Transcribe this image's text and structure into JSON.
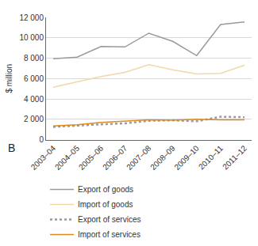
{
  "chart_data": {
    "type": "line",
    "annotations": [
      "B"
    ],
    "y_label": "$ million",
    "categories": [
      "2003–04",
      "2004–05",
      "2005–06",
      "2006–07",
      "2007–08",
      "2008–09",
      "2009–10",
      "2010–11",
      "2011–12"
    ],
    "series": [
      {
        "name": "Export of goods",
        "color": "#9a9a9a",
        "line_style": "solid",
        "values": [
          7950,
          8100,
          9150,
          9100,
          10450,
          9650,
          8250,
          11300,
          11550
        ]
      },
      {
        "name": "Import of goods",
        "color": "#f3d7a6",
        "line_style": "solid",
        "values": [
          5150,
          5700,
          6200,
          6600,
          7350,
          6850,
          6450,
          6500,
          7300
        ]
      },
      {
        "name": "Export of services",
        "color": "#9a9a9a",
        "line_style": "dotted",
        "values": [
          1250,
          1400,
          1500,
          1600,
          1850,
          1900,
          1800,
          2250,
          2200
        ]
      },
      {
        "name": "Import of services",
        "color": "#e0891c",
        "line_style": "solid",
        "values": [
          1350,
          1450,
          1700,
          1850,
          1950,
          1900,
          2000,
          1950,
          1950
        ]
      }
    ],
    "ylim": [
      0,
      12000
    ],
    "yticks": [
      0,
      {
        "value": 2000,
        "label": "2 000"
      },
      {
        "value": 4000,
        "label": "4 000"
      },
      {
        "value": 6000,
        "label": "6 000"
      },
      {
        "value": 8000,
        "label": "8 000"
      },
      {
        "value": 10000,
        "label": "10 000"
      },
      {
        "value": 12000,
        "label": "12 000"
      }
    ],
    "grid": true,
    "legend": "bottom"
  }
}
